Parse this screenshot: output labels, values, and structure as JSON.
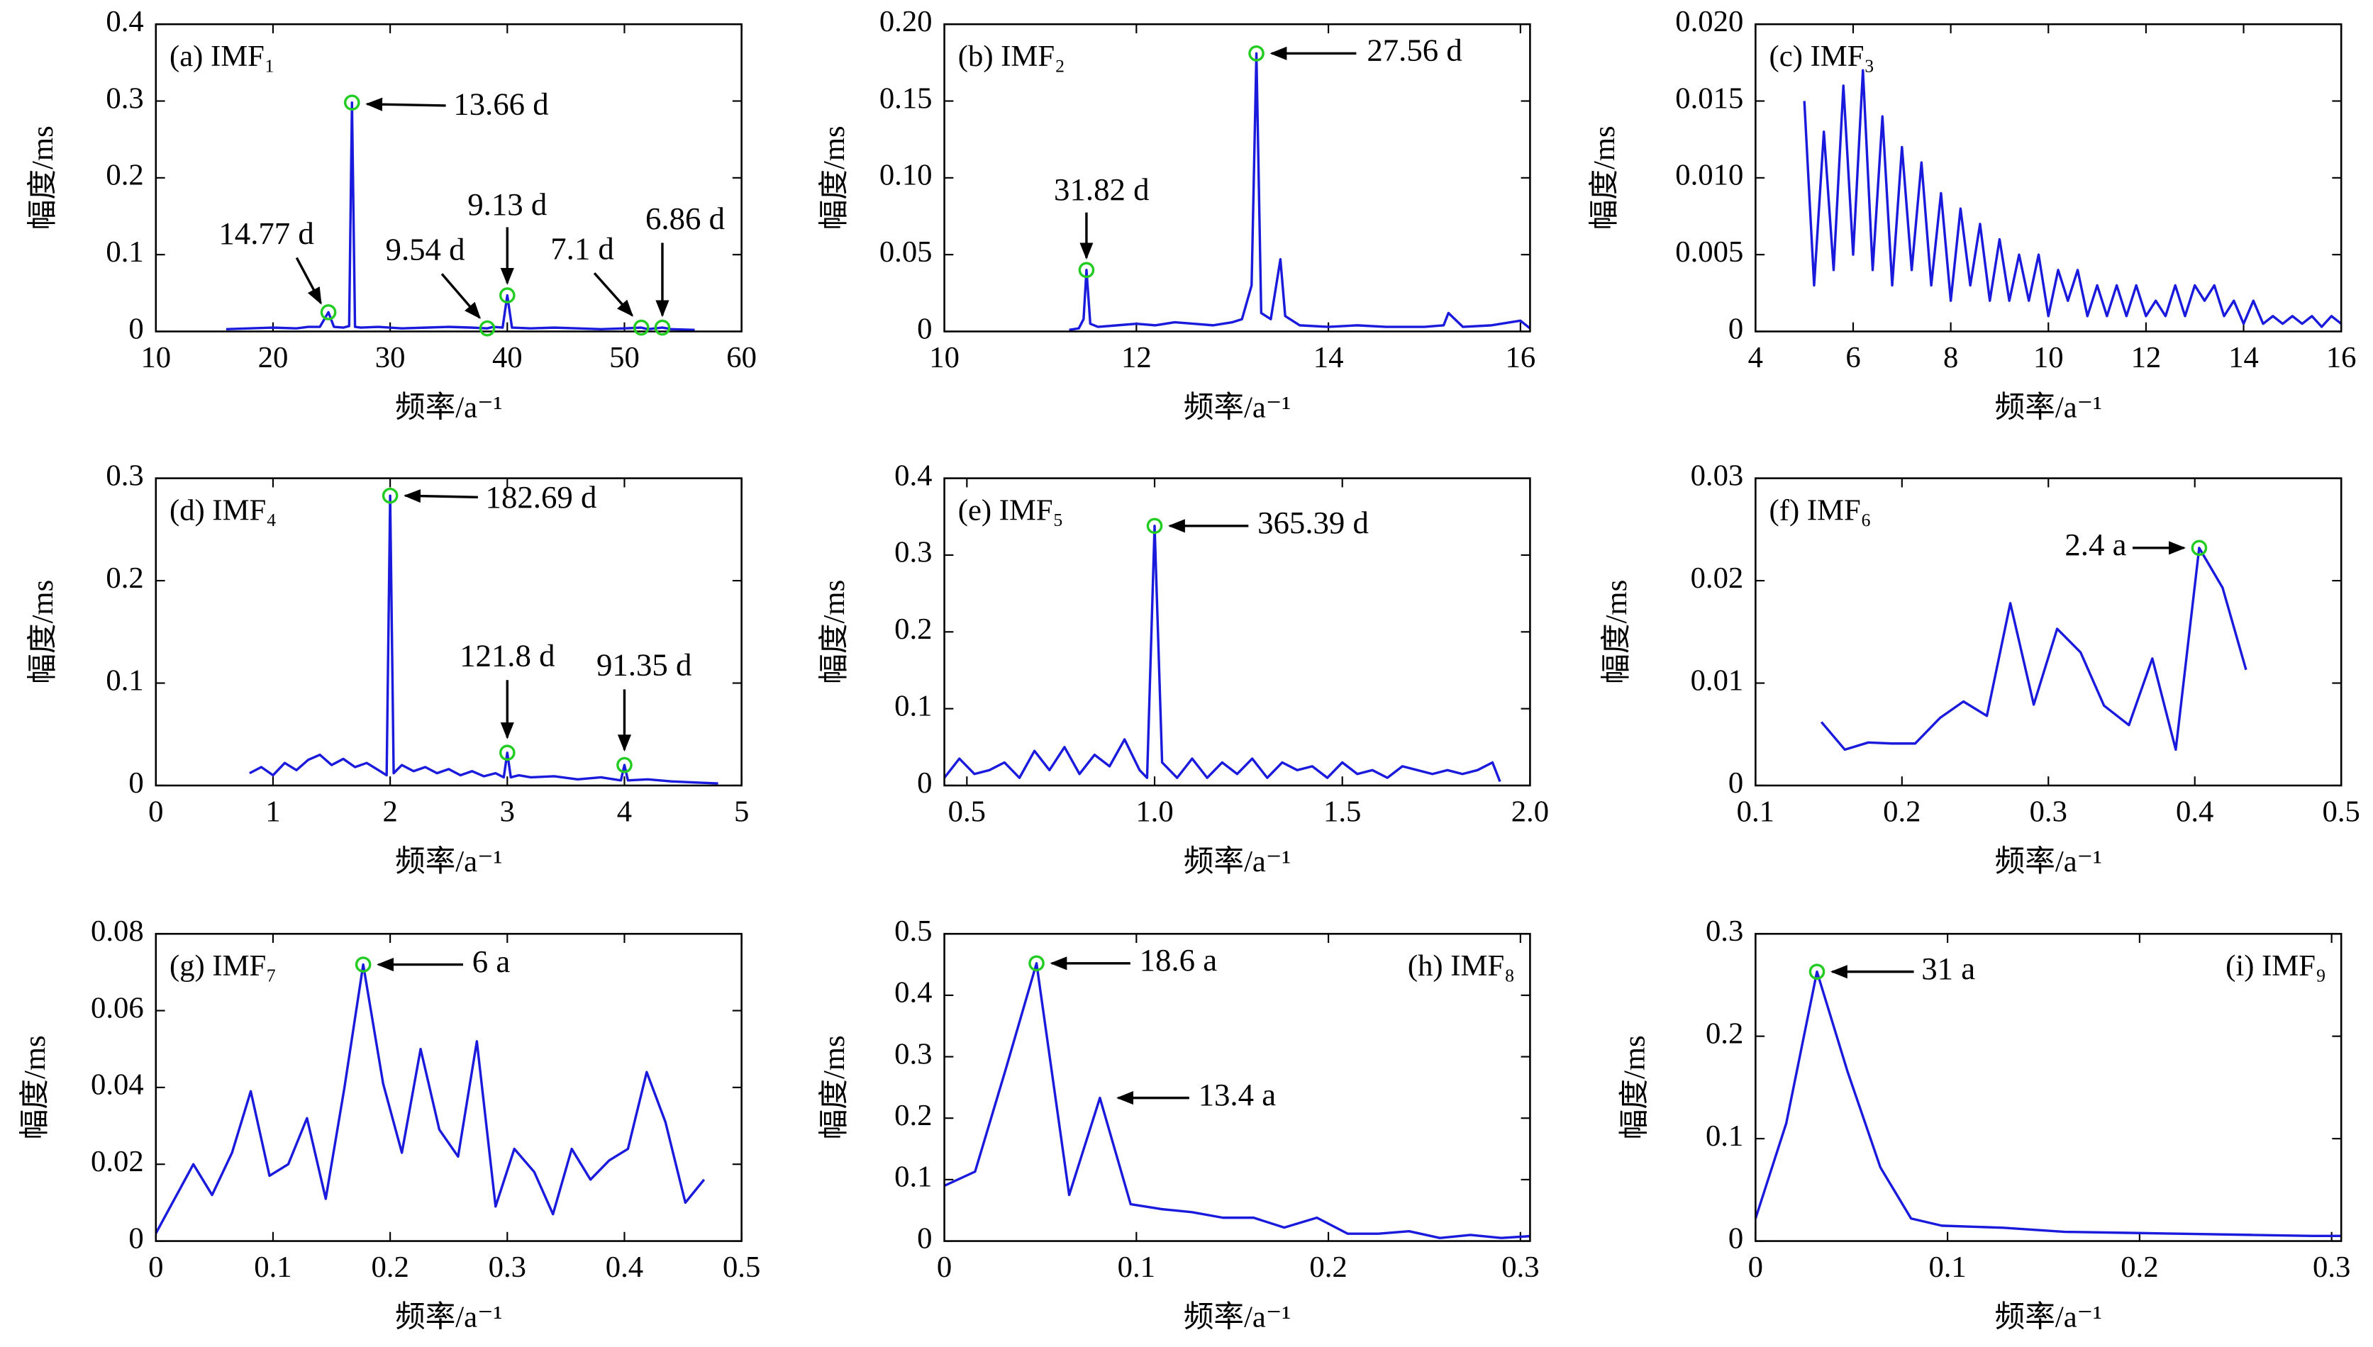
{
  "chart_data": [
    {
      "type": "line",
      "title": "(a) IMF₁",
      "title_position": "upper left",
      "xlabel": "频率/a⁻¹",
      "ylabel": "幅度/ms",
      "color": "#1a1adc",
      "xlim": [
        10,
        60
      ],
      "xticks": [
        10,
        20,
        30,
        40,
        50,
        60
      ],
      "ylim": [
        0,
        0.4
      ],
      "yticks": [
        0,
        0.1,
        0.2,
        0.3,
        0.4
      ],
      "x": [
        16,
        18,
        20,
        22,
        23,
        24,
        24.73,
        25.2,
        26,
        26.5,
        26.74,
        27,
        27.5,
        29,
        31,
        33,
        35,
        37,
        38.29,
        38.8,
        39.6,
        40.0,
        40.4,
        42,
        44,
        46,
        48,
        50,
        51.44,
        52,
        53.24,
        54,
        56
      ],
      "values": [
        0.003,
        0.004,
        0.005,
        0.004,
        0.006,
        0.006,
        0.025,
        0.006,
        0.005,
        0.007,
        0.298,
        0.006,
        0.005,
        0.006,
        0.004,
        0.005,
        0.006,
        0.005,
        0.004,
        0.006,
        0.005,
        0.047,
        0.005,
        0.004,
        0.005,
        0.004,
        0.003,
        0.004,
        0.005,
        0.003,
        0.005,
        0.003,
        0.002
      ],
      "annotations": [
        {
          "text": "14.77 d",
          "x": 24.73,
          "y": 0.025,
          "marker": true
        },
        {
          "text": "13.66 d",
          "x": 26.74,
          "y": 0.298,
          "marker": true
        },
        {
          "text": "9.54 d",
          "x": 38.29,
          "y": 0.004,
          "marker": true
        },
        {
          "text": "9.13 d",
          "x": 40.0,
          "y": 0.047,
          "marker": true
        },
        {
          "text": "7.1 d",
          "x": 51.44,
          "y": 0.005,
          "marker": true
        },
        {
          "text": "6.86 d",
          "x": 53.24,
          "y": 0.005,
          "marker": true
        }
      ]
    },
    {
      "type": "line",
      "title": "(b) IMF₂",
      "title_position": "upper left",
      "xlabel": "频率/a⁻¹",
      "ylabel": "幅度/ms",
      "color": "#1a1adc",
      "xlim": [
        10,
        16.1
      ],
      "xticks": [
        10,
        12,
        14,
        16
      ],
      "ylim": [
        0,
        0.2
      ],
      "yticks": [
        0,
        0.05,
        {
          "value": 0.1,
          "label": "0.10"
        },
        0.15,
        {
          "value": 0.2,
          "label": "0.20"
        }
      ],
      "x": [
        11.3,
        11.4,
        11.45,
        11.48,
        11.52,
        11.6,
        11.8,
        12.0,
        12.2,
        12.4,
        12.6,
        12.8,
        13.0,
        13.1,
        13.2,
        13.25,
        13.3,
        13.4,
        13.5,
        13.55,
        13.7,
        14.0,
        14.3,
        14.6,
        15.0,
        15.2,
        15.25,
        15.4,
        15.7,
        16.0,
        16.1
      ],
      "values": [
        0.001,
        0.002,
        0.008,
        0.04,
        0.005,
        0.003,
        0.004,
        0.005,
        0.004,
        0.006,
        0.005,
        0.004,
        0.006,
        0.008,
        0.03,
        0.181,
        0.012,
        0.008,
        0.047,
        0.01,
        0.004,
        0.003,
        0.004,
        0.003,
        0.003,
        0.004,
        0.012,
        0.003,
        0.004,
        0.007,
        0.002
      ],
      "annotations": [
        {
          "text": "31.82 d",
          "x": 11.48,
          "y": 0.04,
          "marker": true
        },
        {
          "text": "27.56 d",
          "x": 13.25,
          "y": 0.181,
          "marker": true
        }
      ]
    },
    {
      "type": "line",
      "title": "(c) IMF₃",
      "title_position": "upper left",
      "xlabel": "频率/a⁻¹",
      "ylabel": "幅度/ms",
      "color": "#1a1adc",
      "xlim": [
        4,
        16
      ],
      "xticks": [
        4,
        6,
        8,
        10,
        12,
        14,
        16
      ],
      "ylim": [
        0,
        0.02
      ],
      "yticks": [
        0,
        0.005,
        {
          "value": 0.01,
          "label": "0.010"
        },
        0.015,
        {
          "value": 0.02,
          "label": "0.020"
        }
      ],
      "x": [
        5.0,
        5.2,
        5.4,
        5.6,
        5.8,
        6.0,
        6.2,
        6.4,
        6.6,
        6.8,
        7.0,
        7.2,
        7.4,
        7.6,
        7.8,
        8.0,
        8.2,
        8.4,
        8.6,
        8.8,
        9.0,
        9.2,
        9.4,
        9.6,
        9.8,
        10.0,
        10.2,
        10.4,
        10.6,
        10.8,
        11.0,
        11.2,
        11.4,
        11.6,
        11.8,
        12.0,
        12.2,
        12.4,
        12.6,
        12.8,
        13.0,
        13.2,
        13.4,
        13.6,
        13.8,
        14.0,
        14.2,
        14.4,
        14.6,
        14.8,
        15.0,
        15.2,
        15.4,
        15.6,
        15.8,
        16.0
      ],
      "values": [
        0.015,
        0.003,
        0.013,
        0.004,
        0.016,
        0.005,
        0.017,
        0.004,
        0.014,
        0.003,
        0.012,
        0.004,
        0.011,
        0.003,
        0.009,
        0.002,
        0.008,
        0.003,
        0.007,
        0.002,
        0.006,
        0.002,
        0.005,
        0.002,
        0.005,
        0.001,
        0.004,
        0.002,
        0.004,
        0.001,
        0.003,
        0.001,
        0.003,
        0.001,
        0.003,
        0.001,
        0.002,
        0.001,
        0.003,
        0.001,
        0.003,
        0.002,
        0.003,
        0.001,
        0.002,
        0.0005,
        0.002,
        0.0005,
        0.001,
        0.0005,
        0.001,
        0.0005,
        0.001,
        0.0003,
        0.001,
        0.0005
      ],
      "annotations": []
    },
    {
      "type": "line",
      "title": "(d) IMF₄",
      "title_position": "upper left",
      "xlabel": "频率/a⁻¹",
      "ylabel": "幅度/ms",
      "color": "#1a1adc",
      "xlim": [
        0,
        5
      ],
      "xticks": [
        0,
        1,
        2,
        3,
        4,
        5
      ],
      "ylim": [
        0,
        0.3
      ],
      "yticks": [
        0,
        0.1,
        0.2,
        0.3
      ],
      "x": [
        0.8,
        0.9,
        1.0,
        1.1,
        1.2,
        1.3,
        1.4,
        1.5,
        1.6,
        1.7,
        1.8,
        1.9,
        1.97,
        2.0,
        2.03,
        2.1,
        2.2,
        2.3,
        2.4,
        2.5,
        2.6,
        2.7,
        2.8,
        2.9,
        2.97,
        3.0,
        3.03,
        3.1,
        3.2,
        3.4,
        3.6,
        3.8,
        3.97,
        4.0,
        4.03,
        4.2,
        4.4,
        4.6,
        4.8
      ],
      "values": [
        0.012,
        0.018,
        0.01,
        0.022,
        0.015,
        0.025,
        0.03,
        0.02,
        0.026,
        0.018,
        0.022,
        0.015,
        0.01,
        0.283,
        0.012,
        0.02,
        0.014,
        0.018,
        0.012,
        0.016,
        0.01,
        0.014,
        0.009,
        0.012,
        0.008,
        0.032,
        0.008,
        0.01,
        0.008,
        0.009,
        0.006,
        0.008,
        0.005,
        0.02,
        0.005,
        0.006,
        0.004,
        0.003,
        0.002
      ],
      "annotations": [
        {
          "text": "182.69 d",
          "x": 2.0,
          "y": 0.283,
          "marker": true
        },
        {
          "text": "121.8 d",
          "x": 3.0,
          "y": 0.032,
          "marker": true
        },
        {
          "text": "91.35 d",
          "x": 4.0,
          "y": 0.02,
          "marker": true
        }
      ]
    },
    {
      "type": "line",
      "title": "(e) IMF₅",
      "title_position": "upper left",
      "xlabel": "频率/a⁻¹",
      "ylabel": "幅度/ms",
      "color": "#1a1adc",
      "xlim": [
        0.44,
        2.0
      ],
      "xticks": [
        0.5,
        {
          "value": 1,
          "label": "1.0"
        },
        1.5,
        {
          "value": 2,
          "label": "2.0"
        }
      ],
      "ylim": [
        0,
        0.4
      ],
      "yticks": [
        0,
        0.1,
        0.2,
        0.3,
        0.4
      ],
      "x": [
        0.44,
        0.48,
        0.52,
        0.56,
        0.6,
        0.64,
        0.68,
        0.72,
        0.76,
        0.8,
        0.84,
        0.88,
        0.92,
        0.96,
        0.98,
        1.0,
        1.02,
        1.06,
        1.1,
        1.14,
        1.18,
        1.22,
        1.26,
        1.3,
        1.34,
        1.38,
        1.42,
        1.46,
        1.5,
        1.54,
        1.58,
        1.62,
        1.66,
        1.7,
        1.74,
        1.78,
        1.82,
        1.86,
        1.9,
        1.92
      ],
      "values": [
        0.01,
        0.035,
        0.015,
        0.02,
        0.03,
        0.01,
        0.045,
        0.02,
        0.05,
        0.015,
        0.04,
        0.025,
        0.06,
        0.02,
        0.01,
        0.338,
        0.03,
        0.01,
        0.035,
        0.01,
        0.03,
        0.015,
        0.035,
        0.01,
        0.03,
        0.02,
        0.025,
        0.01,
        0.03,
        0.015,
        0.02,
        0.01,
        0.025,
        0.02,
        0.015,
        0.02,
        0.015,
        0.02,
        0.03,
        0.005
      ],
      "annotations": [
        {
          "text": "365.39 d",
          "x": 1.0,
          "y": 0.338,
          "marker": true
        }
      ]
    },
    {
      "type": "line",
      "title": "(f) IMF₆",
      "title_position": "upper left",
      "xlabel": "频率/a⁻¹",
      "ylabel": "幅度/ms",
      "color": "#1a1adc",
      "xlim": [
        0.1,
        0.5
      ],
      "xticks": [
        0.1,
        0.2,
        0.3,
        0.4,
        0.5
      ],
      "ylim": [
        0,
        0.03
      ],
      "yticks": [
        0,
        0.01,
        0.02,
        0.03
      ],
      "x": [
        0.145,
        0.161,
        0.177,
        0.193,
        0.209,
        0.226,
        0.242,
        0.258,
        0.274,
        0.29,
        0.306,
        0.322,
        0.338,
        0.355,
        0.371,
        0.387,
        0.403,
        0.419,
        0.435
      ],
      "values": [
        0.0062,
        0.0035,
        0.0042,
        0.0041,
        0.0041,
        0.0066,
        0.0082,
        0.0068,
        0.0178,
        0.0079,
        0.0153,
        0.013,
        0.0078,
        0.0059,
        0.0124,
        0.0035,
        0.0232,
        0.0193,
        0.0113
      ],
      "annotations": [
        {
          "text": "2.4 a",
          "x": 0.403,
          "y": 0.0232,
          "marker": true
        }
      ]
    },
    {
      "type": "line",
      "title": "(g) IMF₇",
      "title_position": "upper left",
      "xlabel": "频率/a⁻¹",
      "ylabel": "幅度/ms",
      "color": "#1a1adc",
      "xlim": [
        0,
        0.5
      ],
      "xticks": [
        0,
        0.1,
        0.2,
        0.3,
        0.4,
        0.5
      ],
      "ylim": [
        0,
        0.08
      ],
      "yticks": [
        0,
        0.02,
        0.04,
        0.06,
        0.08
      ],
      "x": [
        0,
        0.016,
        0.032,
        0.048,
        0.065,
        0.081,
        0.097,
        0.113,
        0.129,
        0.145,
        0.161,
        0.177,
        0.194,
        0.21,
        0.226,
        0.242,
        0.258,
        0.274,
        0.29,
        0.306,
        0.323,
        0.339,
        0.355,
        0.371,
        0.387,
        0.403,
        0.419,
        0.435,
        0.452,
        0.468
      ],
      "values": [
        0.002,
        0.011,
        0.02,
        0.012,
        0.023,
        0.039,
        0.017,
        0.02,
        0.032,
        0.011,
        0.04,
        0.072,
        0.041,
        0.023,
        0.05,
        0.029,
        0.022,
        0.052,
        0.009,
        0.024,
        0.018,
        0.007,
        0.024,
        0.016,
        0.021,
        0.024,
        0.044,
        0.031,
        0.01,
        0.016
      ],
      "annotations": [
        {
          "text": "6 a",
          "x": 0.177,
          "y": 0.072,
          "marker": true
        }
      ]
    },
    {
      "type": "line",
      "title": "(h) IMF₈",
      "title_position": "upper right",
      "xlabel": "频率/a⁻¹",
      "ylabel": "幅度/ms",
      "color": "#1a1adc",
      "xlim": [
        0,
        0.305
      ],
      "xticks": [
        0,
        0.1,
        0.2,
        0.3
      ],
      "ylim": [
        0,
        0.5
      ],
      "yticks": [
        0,
        0.1,
        0.2,
        0.3,
        0.4,
        0.5
      ],
      "x": [
        0,
        0.016,
        0.032,
        0.048,
        0.065,
        0.081,
        0.097,
        0.113,
        0.129,
        0.145,
        0.161,
        0.177,
        0.194,
        0.21,
        0.226,
        0.242,
        0.258,
        0.274,
        0.29,
        0.305
      ],
      "values": [
        0.09,
        0.113,
        0.28,
        0.452,
        0.075,
        0.233,
        0.06,
        0.052,
        0.047,
        0.038,
        0.038,
        0.022,
        0.038,
        0.012,
        0.012,
        0.016,
        0.005,
        0.01,
        0.005,
        0.008
      ],
      "annotations": [
        {
          "text": "18.6 a",
          "x": 0.048,
          "y": 0.452,
          "marker": true
        },
        {
          "text": "13.4 a",
          "x": 0.081,
          "y": 0.233,
          "marker": false
        }
      ]
    },
    {
      "type": "line",
      "title": "(i) IMF₉",
      "title_position": "upper right",
      "xlabel": "频率/a⁻¹",
      "ylabel": "幅度/ms",
      "color": "#1a1adc",
      "xlim": [
        0,
        0.305
      ],
      "xticks": [
        0,
        0.1,
        0.2,
        0.3
      ],
      "ylim": [
        0,
        0.3
      ],
      "yticks": [
        0,
        0.1,
        0.2,
        0.3
      ],
      "x": [
        0,
        0.016,
        0.032,
        0.048,
        0.065,
        0.081,
        0.097,
        0.129,
        0.161,
        0.194,
        0.226,
        0.258,
        0.29,
        0.305
      ],
      "values": [
        0.022,
        0.115,
        0.263,
        0.165,
        0.072,
        0.022,
        0.015,
        0.013,
        0.009,
        0.008,
        0.007,
        0.006,
        0.005,
        0.005
      ],
      "annotations": [
        {
          "text": "31 a",
          "x": 0.032,
          "y": 0.263,
          "marker": true
        }
      ]
    }
  ]
}
